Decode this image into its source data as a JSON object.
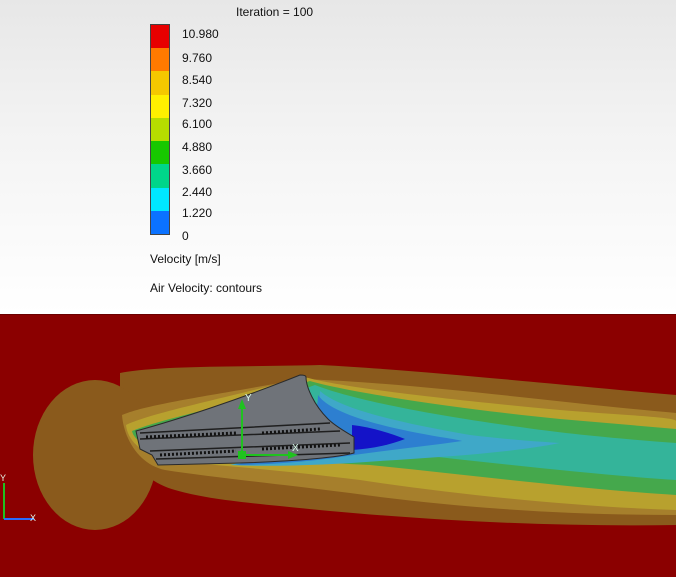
{
  "plot": {
    "title": "Iteration = 100",
    "quantity_label": "Velocity [m/s]",
    "plot_name": "Air Velocity: contours"
  },
  "legend": {
    "ticks": [
      "10.980",
      "9.760",
      "8.540",
      "7.320",
      "6.100",
      "4.880",
      "3.660",
      "2.440",
      "1.220",
      "0"
    ],
    "colors": [
      "#e80000",
      "#ff7a00",
      "#f5c800",
      "#fff000",
      "#b6dd00",
      "#17c800",
      "#00d68a",
      "#00e8ff",
      "#0b72ff",
      "#0000e8"
    ]
  },
  "contour_colors": {
    "background": "#8b0000",
    "wake_outer": "#8a5a1c",
    "wake_orange": "#a67f2c",
    "wake_yellow": "#b8a12e",
    "wake_green": "#45a84c",
    "wake_teal": "#34b49a",
    "wake_cyan": "#3fa8c8",
    "wake_blue": "#2d7fd0",
    "wake_core": "#1413c8",
    "body": "#6f7379"
  },
  "axes_labels": {
    "y": "Y",
    "x": "X"
  }
}
